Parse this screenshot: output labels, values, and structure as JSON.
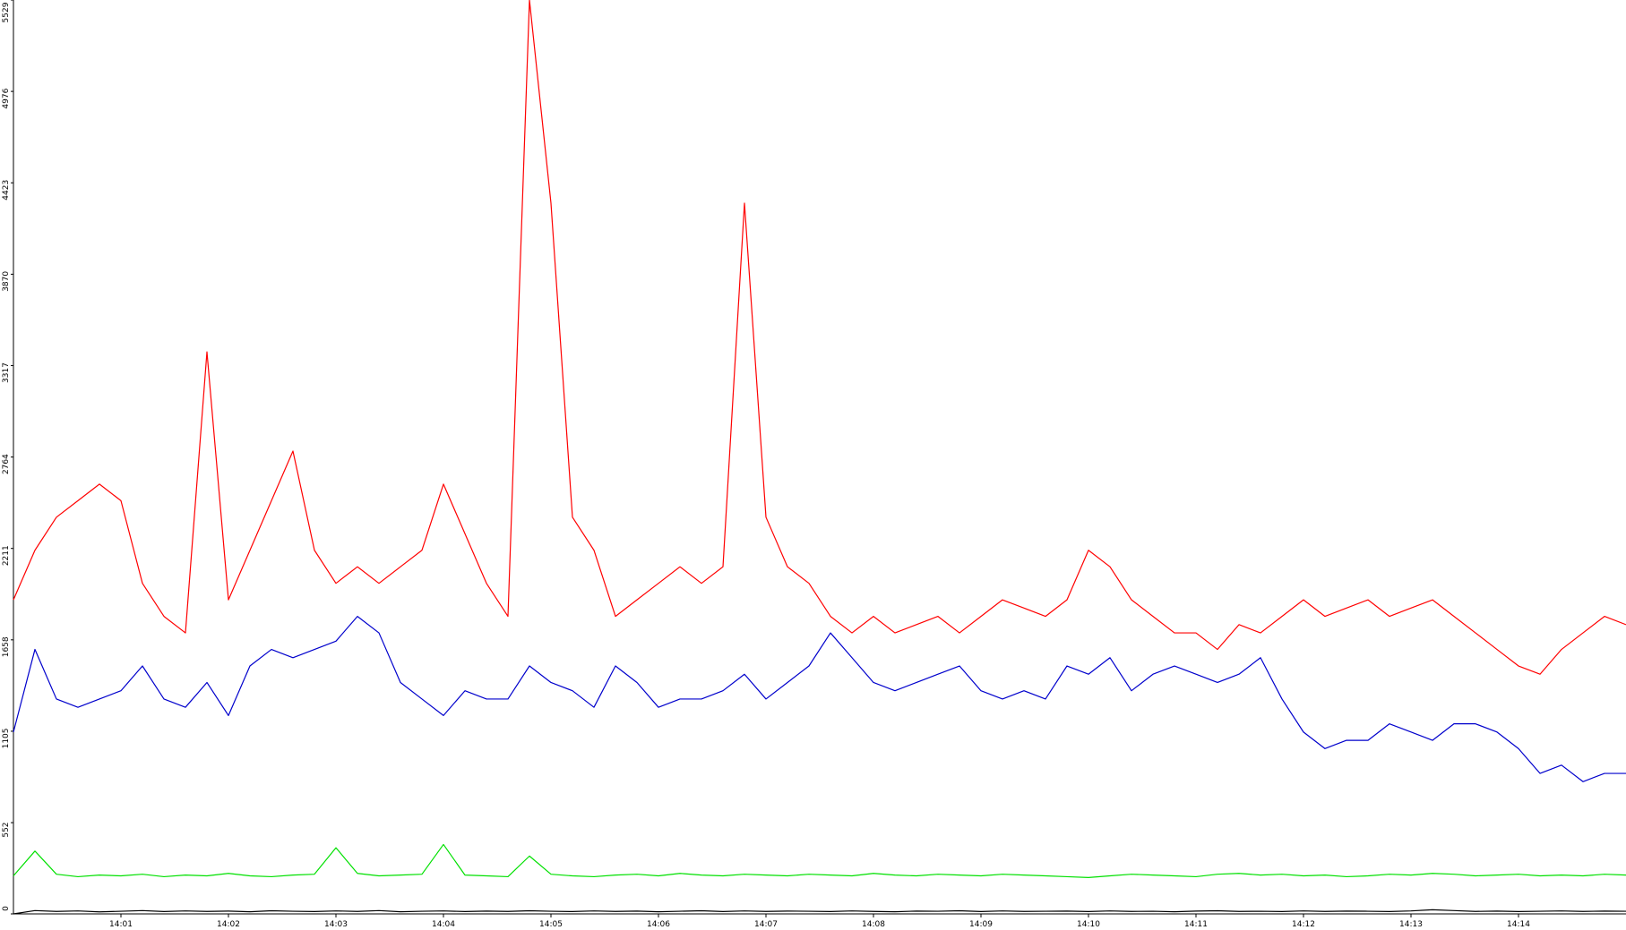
{
  "chart_data": {
    "type": "line",
    "x": [
      840,
      840.2,
      840.4,
      840.6,
      840.8,
      841,
      841.2,
      841.4,
      841.6,
      841.8,
      842,
      842.2,
      842.4,
      842.6,
      842.8,
      843,
      843.2,
      843.4,
      843.6,
      843.8,
      844,
      844.2,
      844.4,
      844.6,
      844.8,
      845,
      845.2,
      845.4,
      845.6,
      845.8,
      846,
      846.2,
      846.4,
      846.6,
      846.8,
      847,
      847.2,
      847.4,
      847.6,
      847.8,
      848,
      848.2,
      848.4,
      848.6,
      848.8,
      849,
      849.2,
      849.4,
      849.6,
      849.8,
      850,
      850.2,
      850.4,
      850.6,
      850.8,
      851,
      851.2,
      851.4,
      851.6,
      851.8,
      852,
      852.2,
      852.4,
      852.6,
      852.8,
      853,
      853.2,
      853.4,
      853.6,
      853.8,
      854,
      854.2,
      854.4,
      854.6,
      854.8,
      855
    ],
    "series": [
      {
        "color": "#ff0000",
        "values": [
          1900,
          2200,
          2400,
          2500,
          2600,
          2500,
          2000,
          1800,
          1700,
          3400,
          1900,
          2200,
          2500,
          2800,
          2200,
          2000,
          2100,
          2000,
          2100,
          2200,
          2600,
          2300,
          2000,
          1800,
          5529,
          4300,
          2400,
          2200,
          1800,
          1900,
          2000,
          2100,
          2000,
          2100,
          4300,
          2400,
          2100,
          2000,
          1800,
          1700,
          1800,
          1700,
          1750,
          1800,
          1700,
          1800,
          1900,
          1850,
          1800,
          1900,
          2200,
          2100,
          1900,
          1800,
          1700,
          1700,
          1600,
          1750,
          1700,
          1800,
          1900,
          1800,
          1850,
          1900,
          1800,
          1850,
          1900,
          1800,
          1700,
          1600,
          1500,
          1450,
          1600,
          1700,
          1800,
          1750
        ]
      },
      {
        "color": "#0000cc",
        "values": [
          1100,
          1600,
          1300,
          1250,
          1300,
          1350,
          1500,
          1300,
          1250,
          1400,
          1200,
          1500,
          1600,
          1550,
          1600,
          1650,
          1800,
          1700,
          1400,
          1300,
          1200,
          1350,
          1300,
          1300,
          1500,
          1400,
          1350,
          1250,
          1500,
          1400,
          1250,
          1300,
          1300,
          1350,
          1450,
          1300,
          1400,
          1500,
          1700,
          1550,
          1400,
          1350,
          1400,
          1450,
          1500,
          1350,
          1300,
          1350,
          1300,
          1500,
          1450,
          1550,
          1350,
          1450,
          1500,
          1450,
          1400,
          1450,
          1550,
          1300,
          1100,
          1000,
          1050,
          1050,
          1150,
          1100,
          1050,
          1150,
          1150,
          1100,
          1000,
          850,
          900,
          800,
          850,
          850
        ]
      },
      {
        "color": "#00e000",
        "values": [
          230,
          380,
          240,
          225,
          235,
          230,
          240,
          225,
          235,
          230,
          245,
          230,
          225,
          235,
          240,
          400,
          245,
          230,
          235,
          240,
          420,
          235,
          230,
          225,
          350,
          240,
          230,
          225,
          235,
          240,
          230,
          245,
          235,
          230,
          240,
          235,
          230,
          240,
          235,
          230,
          245,
          235,
          230,
          240,
          235,
          230,
          240,
          235,
          230,
          225,
          220,
          230,
          240,
          235,
          230,
          225,
          240,
          245,
          235,
          240,
          230,
          235,
          225,
          230,
          240,
          235,
          245,
          240,
          230,
          235,
          240,
          230,
          235,
          230,
          240,
          235
        ]
      },
      {
        "color": "#000000",
        "values": [
          0,
          20,
          15,
          18,
          12,
          16,
          20,
          14,
          18,
          15,
          17,
          13,
          19,
          16,
          14,
          18,
          15,
          20,
          13,
          16,
          18,
          14,
          17,
          15,
          19,
          16,
          14,
          18,
          15,
          17,
          13,
          16,
          19,
          14,
          18,
          15,
          17,
          16,
          14,
          18,
          15,
          13,
          17,
          16,
          19,
          14,
          18,
          15,
          16,
          17,
          14,
          18,
          15,
          16,
          13,
          17,
          19,
          15,
          16,
          14,
          18,
          15,
          17,
          16,
          14,
          18,
          25,
          20,
          15,
          17,
          14,
          16,
          18,
          15,
          17,
          16
        ]
      }
    ],
    "xlim": [
      840,
      855
    ],
    "xticks": [
      {
        "value": 841,
        "label": "14:01"
      },
      {
        "value": 842,
        "label": "14:02"
      },
      {
        "value": 843,
        "label": "14:03"
      },
      {
        "value": 844,
        "label": "14:04"
      },
      {
        "value": 845,
        "label": "14:05"
      },
      {
        "value": 846,
        "label": "14:06"
      },
      {
        "value": 847,
        "label": "14:07"
      },
      {
        "value": 848,
        "label": "14:08"
      },
      {
        "value": 849,
        "label": "14:09"
      },
      {
        "value": 850,
        "label": "14:10"
      },
      {
        "value": 851,
        "label": "14:11"
      },
      {
        "value": 852,
        "label": "14:12"
      },
      {
        "value": 853,
        "label": "14:13"
      },
      {
        "value": 854,
        "label": "14:14"
      }
    ],
    "ylim": [
      0,
      5529
    ],
    "yticks": [
      0,
      552,
      1105,
      1658,
      2211,
      2764,
      3317,
      3870,
      4423,
      4976,
      5529
    ]
  }
}
